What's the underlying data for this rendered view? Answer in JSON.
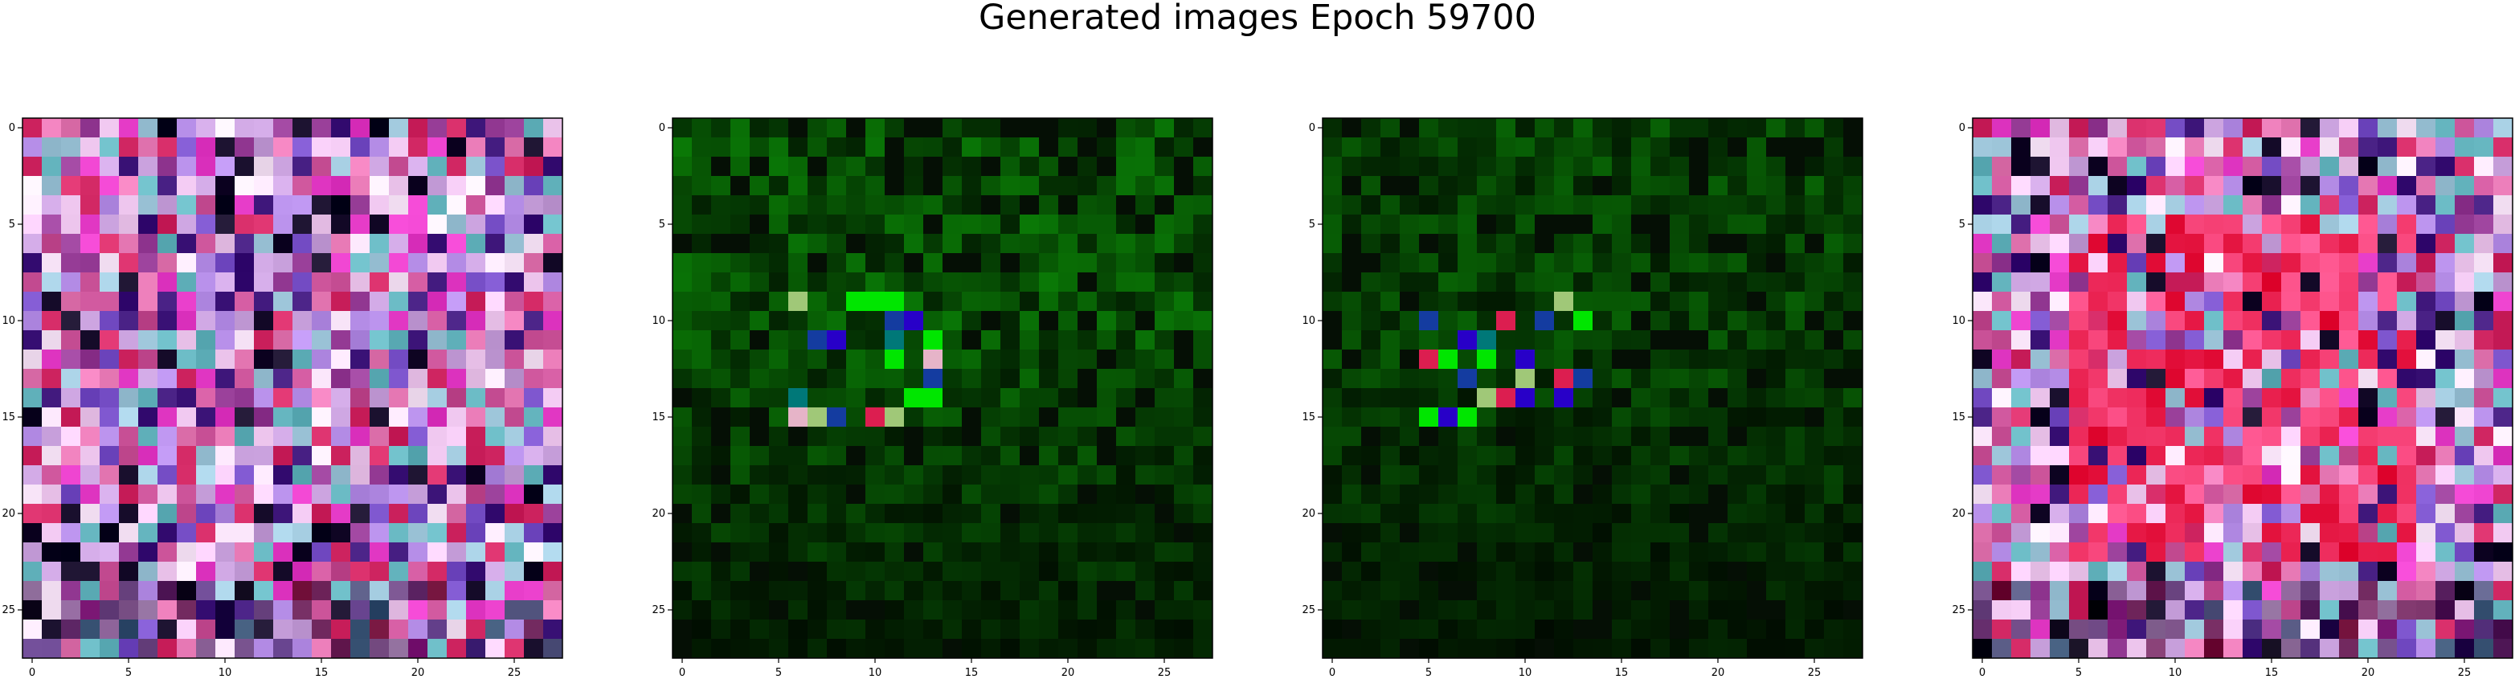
{
  "figure": {
    "title": "Generated images Epoch 59700"
  },
  "chart_data": [
    {
      "type": "heatmap",
      "panel": 1,
      "description_scheme": "28x28 RGB generated image",
      "xlim": [
        -0.5,
        27.5
      ],
      "ylim": [
        27.5,
        -0.5
      ],
      "xticks": [
        0,
        5,
        10,
        15,
        20,
        25
      ],
      "yticks": [
        0,
        5,
        10,
        15,
        20,
        25
      ],
      "palette": "pink-purple-magenta",
      "pattern": "grid",
      "seed": 11
    },
    {
      "type": "heatmap",
      "panel": 2,
      "description_scheme": "28x28 RGB generated image",
      "xlim": [
        -0.5,
        27.5
      ],
      "ylim": [
        27.5,
        -0.5
      ],
      "xticks": [
        0,
        5,
        10,
        15,
        20,
        25
      ],
      "yticks": [
        0,
        5,
        10,
        15,
        20,
        25
      ],
      "palette": "green-dark",
      "pattern": "green",
      "seed": 23
    },
    {
      "type": "heatmap",
      "panel": 3,
      "description_scheme": "28x28 RGB generated image",
      "xlim": [
        -0.5,
        27.5
      ],
      "ylim": [
        27.5,
        -0.5
      ],
      "xticks": [
        0,
        5,
        10,
        15,
        20,
        25
      ],
      "yticks": [
        0,
        5,
        10,
        15,
        20,
        25
      ],
      "palette": "green-darker",
      "pattern": "green2",
      "seed": 37
    },
    {
      "type": "heatmap",
      "panel": 4,
      "description_scheme": "28x28 RGB generated image",
      "xlim": [
        -0.5,
        27.5
      ],
      "ylim": [
        27.5,
        -0.5
      ],
      "xticks": [
        0,
        5,
        10,
        15,
        20,
        25
      ],
      "yticks": [
        0,
        5,
        10,
        15,
        20,
        25
      ],
      "palette": "pink-red-white",
      "pattern": "grid-red",
      "seed": 53
    }
  ]
}
